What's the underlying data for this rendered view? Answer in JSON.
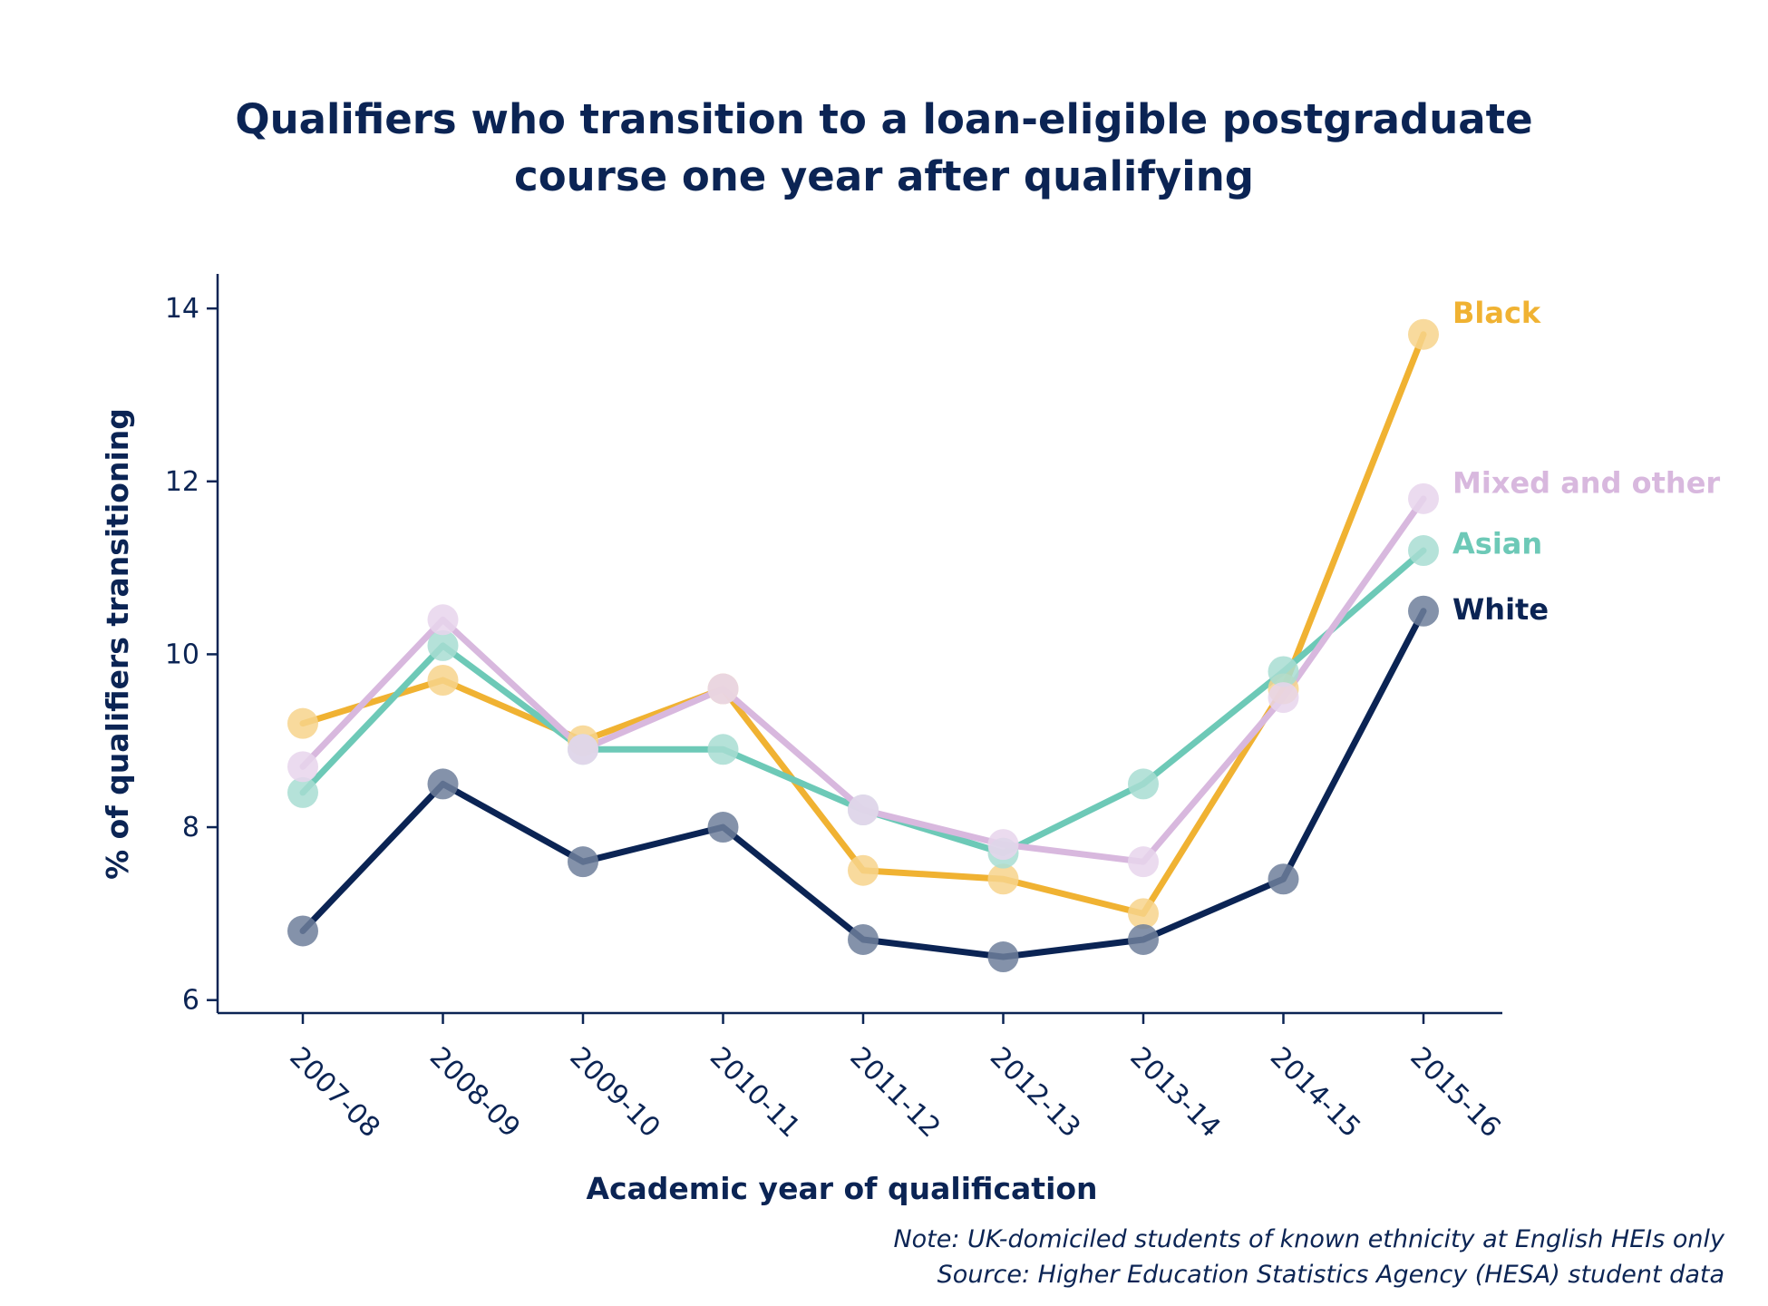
{
  "title_lines": [
    "Qualifiers who transition to a loan-eligible postgraduate",
    "course one year after qualifying"
  ],
  "notes": {
    "note": "Note: UK-domiciled students of known ethnicity at English HEIs only",
    "source": "Source: Higher Education Statistics Agency (HESA) student data"
  },
  "chart_data": {
    "type": "line",
    "title": "Qualifiers who transition to a loan-eligible postgraduate course one year after qualifying",
    "xlabel": "Academic year of qualification",
    "ylabel": "% of qualifiers transitioning",
    "categories": [
      "2007-08",
      "2008-09",
      "2009-10",
      "2010-11",
      "2011-12",
      "2012-13",
      "2013-14",
      "2014-15",
      "2015-16"
    ],
    "ylim": [
      5.85,
      14.4
    ],
    "yticks": [
      6,
      8,
      10,
      12,
      14
    ],
    "grid": false,
    "legend": "direct labels at right end of lines",
    "series": [
      {
        "name": "Black",
        "color": "#f0b232",
        "marker_color": "#f7d48c",
        "values": [
          9.2,
          9.7,
          9.0,
          9.6,
          7.5,
          7.4,
          7.0,
          9.6,
          13.7
        ]
      },
      {
        "name": "Asian",
        "color": "#6dc9b7",
        "marker_color": "#a8ddd2",
        "values": [
          8.4,
          10.1,
          8.9,
          8.9,
          8.2,
          7.7,
          8.5,
          9.8,
          11.2
        ]
      },
      {
        "name": "Mixed and other",
        "color": "#d8b8de",
        "marker_color": "#e8d5ec",
        "values": [
          8.7,
          10.4,
          8.9,
          9.6,
          8.2,
          7.8,
          7.6,
          9.5,
          11.8
        ]
      },
      {
        "name": "White",
        "color": "#0b2454",
        "marker_color": "#6e7f9b",
        "values": [
          6.8,
          8.5,
          7.6,
          8.0,
          6.7,
          6.5,
          6.7,
          7.4,
          10.5
        ]
      }
    ]
  }
}
